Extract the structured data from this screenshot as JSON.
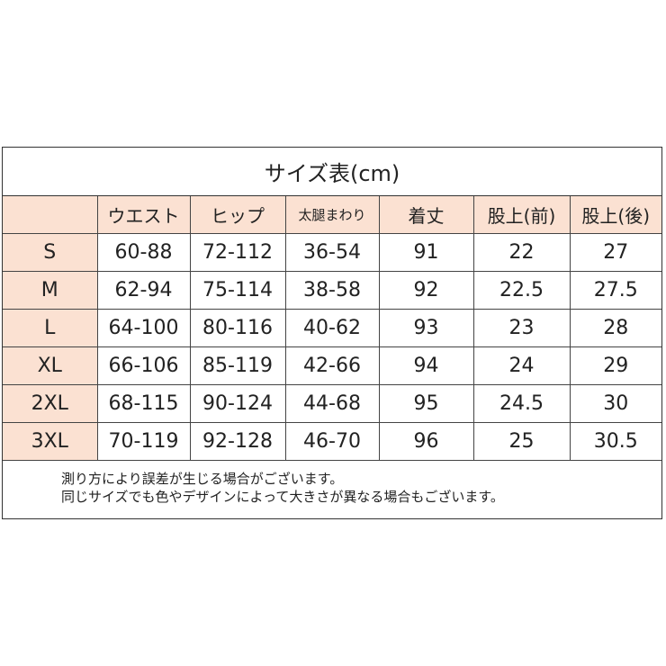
{
  "title": "サイズ表(cm)",
  "headers": [
    "",
    "ウエスト",
    "ヒップ",
    "太腿まわり",
    "着丈",
    "股上(前)",
    "股上(後)"
  ],
  "rows": [
    [
      "S",
      "60-88",
      "72-112",
      "36-54",
      "91",
      "22",
      "27"
    ],
    [
      "M",
      "62-94",
      "75-114",
      "38-58",
      "92",
      "22.5",
      "27.5"
    ],
    [
      "L",
      "64-100",
      "80-116",
      "40-62",
      "93",
      "23",
      "28"
    ],
    [
      "XL",
      "66-106",
      "85-119",
      "42-66",
      "94",
      "24",
      "29"
    ],
    [
      "2XL",
      "68-115",
      "90-124",
      "44-68",
      "95",
      "24.5",
      "30"
    ],
    [
      "3XL",
      "70-119",
      "92-128",
      "46-70",
      "96",
      "25",
      "30.5"
    ]
  ],
  "notes": [
    "測り方により誤差が生じる場合がございます。",
    "同じサイズでも色やデザインによって大きさが異なる場合もございます。"
  ],
  "colors": {
    "header_bg": "#fbe1d2",
    "border": "#333333"
  }
}
